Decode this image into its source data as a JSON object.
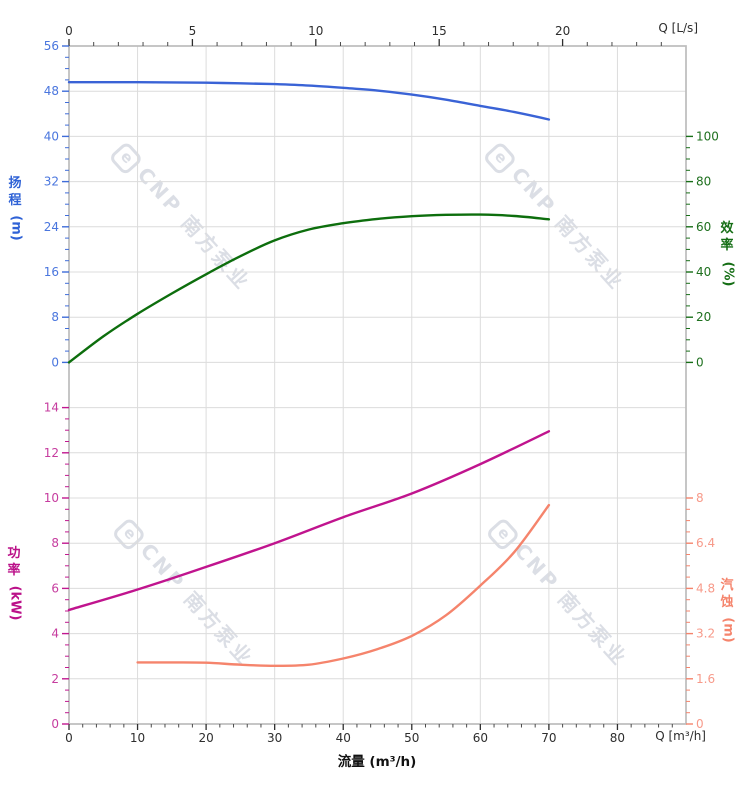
{
  "watermark": {
    "logo_char": "e",
    "text": "CNP 南方泵业"
  },
  "labels": {
    "flow_axis": "流量 (m³/h)",
    "q_top": "Q [L/s]",
    "q_bottom": "Q [m³/h]",
    "head": "扬程",
    "head_unit": "(m)",
    "efficiency": "效率",
    "efficiency_unit": "(%)",
    "power": "功率",
    "power_unit": "(kW)",
    "npsh": "汽蚀",
    "npsh_unit": "(m)"
  },
  "chart_data": {
    "type": "line",
    "title": "",
    "grid": true,
    "legend": false,
    "x_bottom": {
      "label": "流量 (m³/h)",
      "unit": "m³/h",
      "min": 0,
      "max": 90,
      "major_ticks": [
        0,
        10,
        20,
        30,
        40,
        50,
        60,
        70,
        80
      ],
      "minor_step": 2,
      "gridlines": [
        10,
        20,
        30,
        40,
        50,
        60,
        70,
        80
      ]
    },
    "x_top": {
      "label": "Q [L/s]",
      "unit": "L/s",
      "min": 0,
      "max": 25,
      "major_ticks": [
        0,
        5,
        10,
        15,
        20
      ],
      "minor_step": 1
    },
    "y_axes": {
      "head": {
        "label": "扬程 (m)",
        "side": "left",
        "section": "upper",
        "min": 0,
        "max": 56,
        "major_ticks": [
          56,
          48,
          40,
          32,
          24,
          16,
          8,
          0
        ],
        "minor_step": 2,
        "tick_color": "#3f6cd8",
        "tick_label_color": "#4a76de"
      },
      "efficiency": {
        "label": "效率 (%)",
        "side": "right",
        "section": "upper",
        "min": 0,
        "max": 100,
        "major_ticks": [
          100,
          80,
          60,
          40,
          20,
          0
        ],
        "minor_step": 5,
        "tick_color": "#176e17",
        "tick_label_color": "#1f701f"
      },
      "power": {
        "label": "功率 (kW)",
        "side": "left",
        "section": "lower",
        "min": 0,
        "max": 14,
        "major_ticks": [
          14,
          12,
          10,
          8,
          6,
          4,
          2,
          0
        ],
        "minor_step": 0.5,
        "tick_color": "#c0188f",
        "tick_label_color": "#c63d9f"
      },
      "npsh": {
        "label": "汽蚀 (m)",
        "side": "right",
        "section": "lower",
        "min": 0,
        "max": 8,
        "major_ticks": [
          8,
          6.4,
          4.8,
          3.2,
          1.6,
          0
        ],
        "minor_step": 0.4,
        "tick_color": "#f5846c",
        "tick_label_color": "#f79a8a"
      }
    },
    "series": [
      {
        "name": "head",
        "axis": "head",
        "color": "#3a63d6",
        "points": [
          [
            0,
            49.6
          ],
          [
            5,
            49.6
          ],
          [
            10,
            49.6
          ],
          [
            15,
            49.55
          ],
          [
            20,
            49.5
          ],
          [
            25,
            49.4
          ],
          [
            30,
            49.25
          ],
          [
            35,
            49.0
          ],
          [
            40,
            48.6
          ],
          [
            45,
            48.1
          ],
          [
            50,
            47.4
          ],
          [
            55,
            46.5
          ],
          [
            60,
            45.4
          ],
          [
            65,
            44.3
          ],
          [
            70,
            43.0
          ]
        ]
      },
      {
        "name": "efficiency",
        "axis": "efficiency",
        "color": "#0d6e0d",
        "points": [
          [
            0,
            0
          ],
          [
            5,
            11.5
          ],
          [
            10,
            21.5
          ],
          [
            15,
            30.5
          ],
          [
            20,
            39.0
          ],
          [
            25,
            47.0
          ],
          [
            30,
            54.0
          ],
          [
            35,
            58.8
          ],
          [
            40,
            61.6
          ],
          [
            45,
            63.5
          ],
          [
            50,
            64.7
          ],
          [
            55,
            65.3
          ],
          [
            60,
            65.4
          ],
          [
            65,
            64.8
          ],
          [
            70,
            63.3
          ]
        ]
      },
      {
        "name": "power",
        "axis": "power",
        "color": "#c0148e",
        "points": [
          [
            0,
            5.05
          ],
          [
            10,
            5.95
          ],
          [
            20,
            6.95
          ],
          [
            30,
            8.0
          ],
          [
            40,
            9.15
          ],
          [
            50,
            10.2
          ],
          [
            60,
            11.5
          ],
          [
            70,
            12.95
          ]
        ]
      },
      {
        "name": "npsh",
        "axis": "npsh",
        "color": "#f5846c",
        "points": [
          [
            10,
            2.18
          ],
          [
            15,
            2.18
          ],
          [
            20,
            2.17
          ],
          [
            25,
            2.1
          ],
          [
            30,
            2.06
          ],
          [
            35,
            2.1
          ],
          [
            40,
            2.32
          ],
          [
            45,
            2.65
          ],
          [
            50,
            3.12
          ],
          [
            55,
            3.85
          ],
          [
            60,
            4.9
          ],
          [
            65,
            6.1
          ],
          [
            70,
            7.75
          ]
        ]
      }
    ]
  }
}
